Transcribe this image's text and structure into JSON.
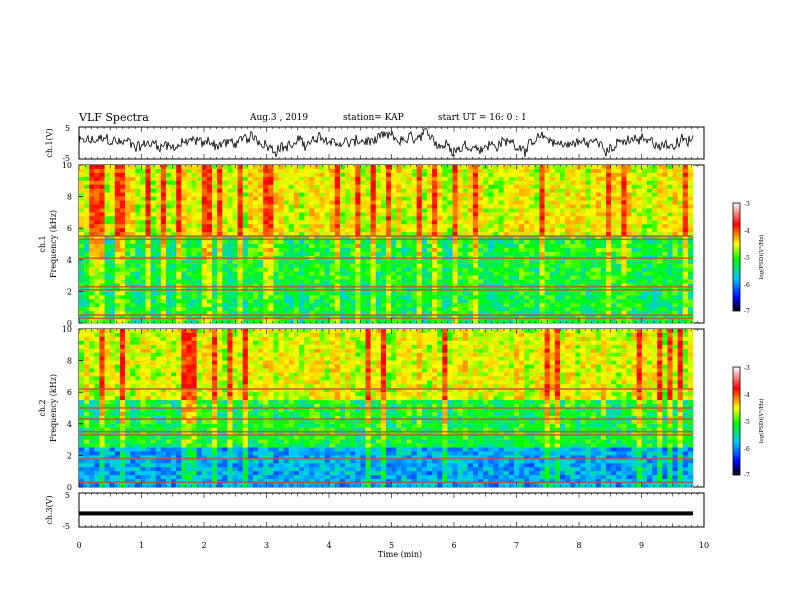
{
  "header": {
    "title": "VLF Spectra",
    "date": "Aug.3 , 2019",
    "station": "station= KAP",
    "start": "start UT = 16: 0 : 1"
  },
  "chart_data": [
    {
      "type": "line",
      "ylabel": "ch.1(V)",
      "ylim": [
        -5,
        5
      ],
      "yticks": [
        "5",
        "-5"
      ],
      "xlim": [
        0,
        10
      ],
      "description_series": "noisy waveform oscillating roughly between -4 and 3 V"
    },
    {
      "type": "heatmap",
      "ylabel": "ch.1\nFrequency (kHz)",
      "ylabel_line1": "ch.1",
      "ylabel_line2": "Frequency (kHz)",
      "ylim": [
        0,
        10
      ],
      "yticks": [
        "0",
        "2",
        "4",
        "6",
        "8",
        "10"
      ],
      "xlim": [
        0,
        10
      ],
      "colorbar": {
        "label": "log(PSD)(V²/Hz)",
        "range": [
          -7,
          -3
        ],
        "ticks": [
          "-3",
          "-4",
          "-5",
          "-6",
          "-7"
        ]
      },
      "bands_khz": [
        0.3,
        0.5,
        2.1,
        2.3,
        4.1,
        5.3,
        5.5
      ]
    },
    {
      "type": "heatmap",
      "ylabel_line1": "ch.2",
      "ylabel_line2": "Frequency (kHz)",
      "ylim": [
        0,
        10
      ],
      "yticks": [
        "0",
        "2",
        "4",
        "6",
        "8",
        "10"
      ],
      "xlim": [
        0,
        10
      ],
      "colorbar": {
        "label": "log(PSD)(V²/Hz)",
        "range": [
          -7,
          -3
        ],
        "ticks": [
          "-3",
          "-4",
          "-5",
          "-6",
          "-7"
        ]
      },
      "bands_khz": [
        0.3,
        1.8,
        3.3,
        3.5,
        4.3,
        5.0,
        6.2
      ]
    },
    {
      "type": "line",
      "ylabel": "ch.3(V)",
      "ylim": [
        -5,
        5
      ],
      "yticks": [
        "5",
        "-5"
      ],
      "xlim": [
        0,
        10
      ],
      "constant_value": -1,
      "xlabel": "Time (min)",
      "xticks": [
        "0",
        "1",
        "2",
        "3",
        "4",
        "5",
        "6",
        "7",
        "8",
        "9",
        "10"
      ]
    }
  ],
  "colors": {
    "frame": "#000000",
    "background": "#ffffff"
  }
}
